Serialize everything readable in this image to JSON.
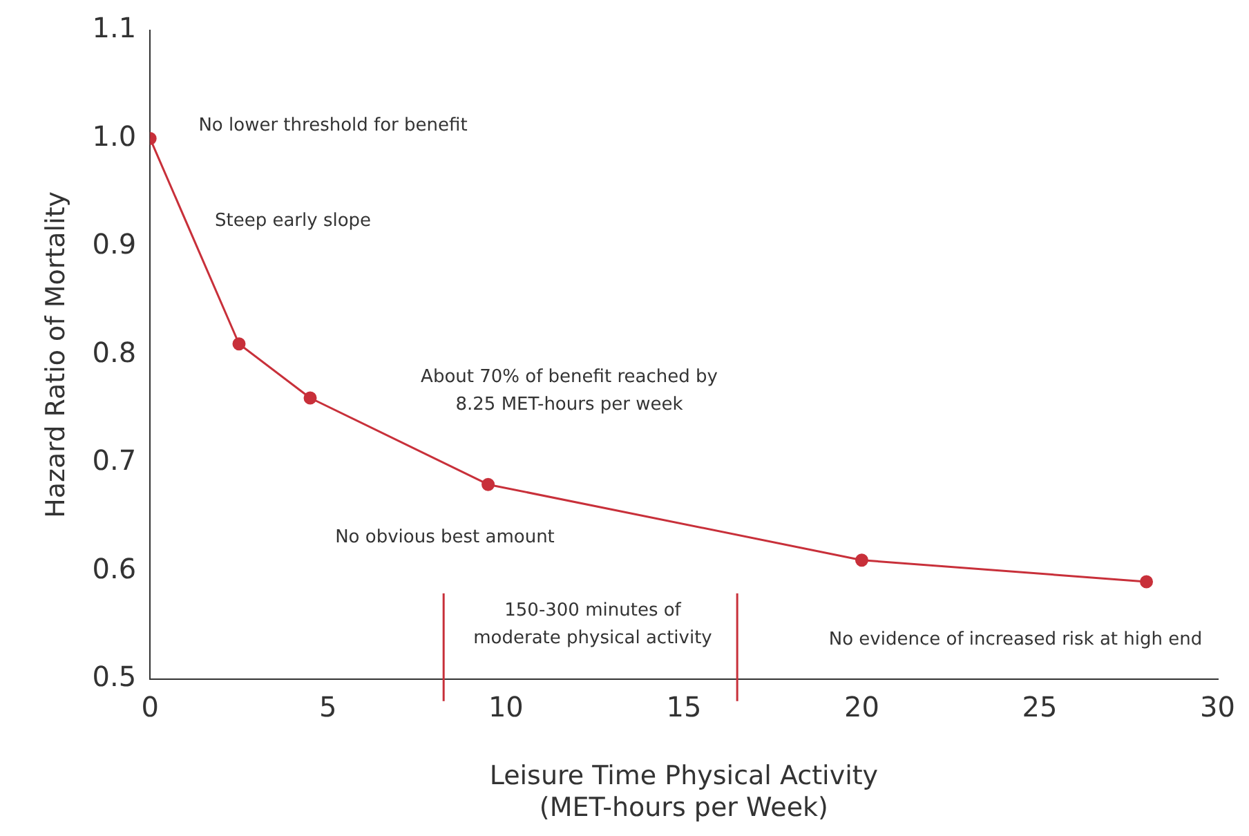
{
  "chart_data": {
    "type": "line",
    "xlabel": "Leisure Time Physical Activity\n(MET-hours per Week)",
    "ylabel": "Hazard Ratio of Mortality",
    "x": [
      0,
      2.5,
      4.5,
      9.5,
      20,
      28
    ],
    "series": [
      {
        "color": "#c8303a",
        "values": [
          1.0,
          0.81,
          0.76,
          0.68,
          0.61,
          0.59
        ]
      }
    ],
    "xlim": [
      0,
      30
    ],
    "xticks": [
      0,
      5,
      10,
      15,
      20,
      25,
      30
    ],
    "ylim": [
      0.5,
      1.1
    ],
    "yticks": [
      0.5,
      0.6,
      0.7,
      0.8,
      0.9,
      {
        "value": 1,
        "label": "1.0"
      },
      1.1
    ],
    "grid": false,
    "legend": false,
    "marker": "circle",
    "line_style": "solid",
    "ref_lines": [
      {
        "axis": "x",
        "value": 8.25,
        "color": "#c8303a"
      },
      {
        "axis": "x",
        "value": 16.5,
        "color": "#c8303a"
      }
    ],
    "annotations": [
      "No lower threshold for benefit",
      "Steep early slope",
      "About 70% of benefit reached by\n8.25 MET-hours per week",
      "No obvious best amount",
      "150-300 minutes of\nmoderate physical activity",
      "No evidence of increased risk at high end"
    ]
  }
}
